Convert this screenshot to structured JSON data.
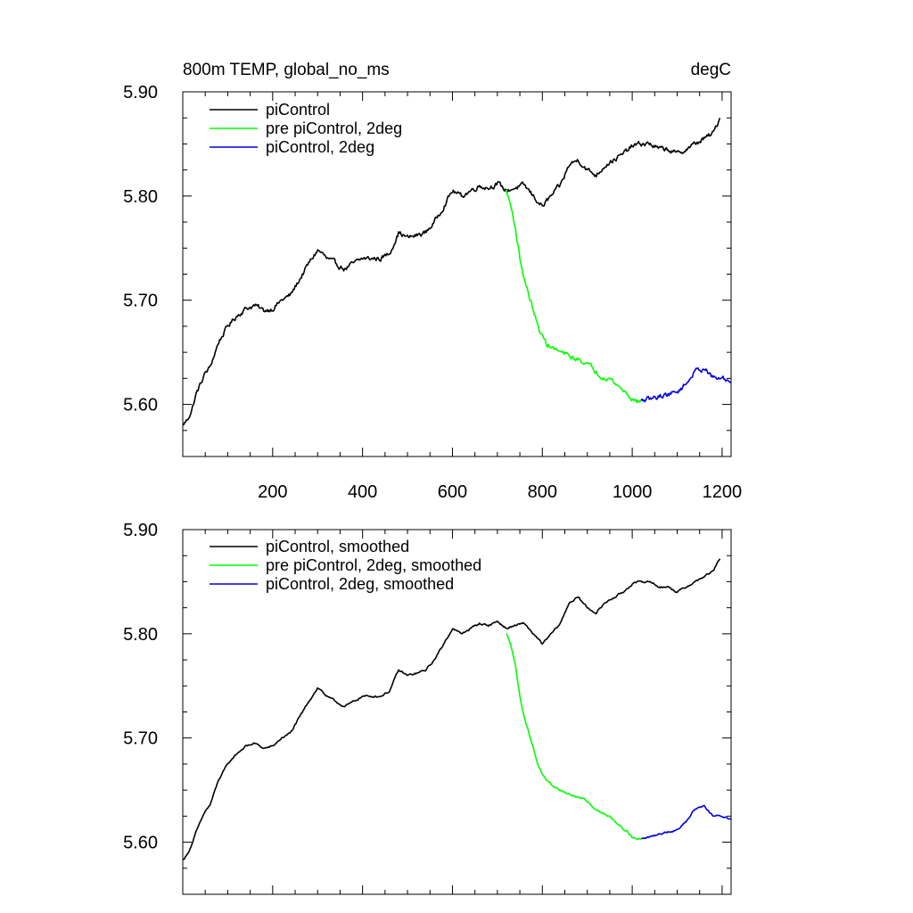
{
  "header": {
    "left": "800m TEMP, global_no_ms",
    "right": "degC"
  },
  "colors": {
    "piControl": "#000000",
    "pre_piControl": "#00ff00",
    "piControl_2deg": "#0000dd"
  },
  "chart_data": [
    {
      "type": "line",
      "title": "800m TEMP, global_no_ms",
      "units": "degC",
      "xlim": [
        0,
        1220
      ],
      "ylim": [
        5.55,
        5.9
      ],
      "xticks": [
        200,
        400,
        600,
        800,
        1000,
        1200
      ],
      "xticklabels": [
        "200",
        "400",
        "600",
        "800",
        "1000",
        "1200"
      ],
      "yticks": [
        5.6,
        5.7,
        5.8,
        5.9
      ],
      "yticklabels": [
        "5.60",
        "5.70",
        "5.80",
        "5.90"
      ],
      "legend": "top-left",
      "series": [
        {
          "name": "piControl",
          "color": "#000000",
          "noise": 0.004,
          "x": [
            0,
            10,
            20,
            30,
            40,
            50,
            60,
            80,
            100,
            120,
            140,
            160,
            180,
            200,
            220,
            240,
            260,
            280,
            300,
            310,
            320,
            340,
            360,
            380,
            400,
            420,
            440,
            460,
            480,
            500,
            520,
            540,
            560,
            580,
            600,
            620,
            640,
            660,
            680,
            700,
            720,
            740,
            760,
            780,
            800,
            820,
            840,
            860,
            880,
            900,
            920,
            940,
            960,
            980,
            1000,
            1020,
            1040,
            1060,
            1080,
            1100,
            1120,
            1140,
            1160,
            1180,
            1195
          ],
          "y": [
            5.58,
            5.585,
            5.595,
            5.61,
            5.62,
            5.63,
            5.635,
            5.66,
            5.675,
            5.685,
            5.692,
            5.695,
            5.69,
            5.692,
            5.7,
            5.705,
            5.72,
            5.735,
            5.748,
            5.745,
            5.74,
            5.735,
            5.73,
            5.735,
            5.74,
            5.74,
            5.74,
            5.745,
            5.765,
            5.76,
            5.762,
            5.765,
            5.775,
            5.79,
            5.805,
            5.8,
            5.805,
            5.81,
            5.808,
            5.812,
            5.805,
            5.808,
            5.81,
            5.8,
            5.79,
            5.8,
            5.81,
            5.83,
            5.835,
            5.825,
            5.82,
            5.83,
            5.835,
            5.84,
            5.848,
            5.85,
            5.85,
            5.845,
            5.845,
            5.84,
            5.845,
            5.85,
            5.855,
            5.86,
            5.875
          ]
        },
        {
          "name": "pre piControl, 2deg",
          "color": "#00ff00",
          "noise": 0.004,
          "x": [
            720,
            730,
            740,
            750,
            760,
            770,
            780,
            790,
            800,
            810,
            820,
            830,
            850,
            870,
            890,
            910,
            930,
            950,
            970,
            990,
            1000,
            1010,
            1020
          ],
          "y": [
            5.805,
            5.79,
            5.77,
            5.74,
            5.72,
            5.705,
            5.69,
            5.675,
            5.665,
            5.658,
            5.655,
            5.652,
            5.648,
            5.644,
            5.642,
            5.635,
            5.628,
            5.625,
            5.617,
            5.61,
            5.605,
            5.603,
            5.603
          ]
        },
        {
          "name": "piControl, 2deg",
          "color": "#0000dd",
          "noise": 0.004,
          "x": [
            1020,
            1040,
            1060,
            1080,
            1100,
            1120,
            1140,
            1160,
            1180,
            1200,
            1220
          ],
          "y": [
            5.603,
            5.605,
            5.608,
            5.61,
            5.612,
            5.62,
            5.632,
            5.635,
            5.625,
            5.625,
            5.622
          ]
        }
      ]
    },
    {
      "type": "line",
      "xlim": [
        0,
        1220
      ],
      "ylim": [
        5.55,
        5.9
      ],
      "xticks": [
        200,
        400,
        600,
        800,
        1000,
        1200
      ],
      "xticklabels": [],
      "yticks": [
        5.6,
        5.7,
        5.8,
        5.9
      ],
      "yticklabels": [
        "5.60",
        "5.70",
        "5.80",
        "5.90"
      ],
      "legend": "top-left",
      "series": [
        {
          "name": "piControl, smoothed",
          "color": "#000000",
          "noise": 0.0015,
          "x": [
            0,
            10,
            20,
            30,
            40,
            50,
            60,
            80,
            100,
            120,
            140,
            160,
            180,
            200,
            220,
            240,
            260,
            280,
            300,
            310,
            320,
            340,
            360,
            380,
            400,
            420,
            440,
            460,
            480,
            500,
            520,
            540,
            560,
            580,
            600,
            620,
            640,
            660,
            680,
            700,
            720,
            740,
            760,
            780,
            800,
            820,
            840,
            860,
            880,
            900,
            920,
            940,
            960,
            980,
            1000,
            1020,
            1040,
            1060,
            1080,
            1100,
            1120,
            1140,
            1160,
            1180,
            1195
          ],
          "y": [
            5.583,
            5.588,
            5.598,
            5.61,
            5.62,
            5.63,
            5.635,
            5.66,
            5.675,
            5.685,
            5.692,
            5.695,
            5.69,
            5.692,
            5.7,
            5.705,
            5.72,
            5.735,
            5.748,
            5.745,
            5.74,
            5.735,
            5.73,
            5.735,
            5.74,
            5.74,
            5.74,
            5.745,
            5.765,
            5.76,
            5.762,
            5.765,
            5.775,
            5.79,
            5.805,
            5.8,
            5.805,
            5.81,
            5.808,
            5.812,
            5.805,
            5.808,
            5.81,
            5.8,
            5.79,
            5.8,
            5.81,
            5.83,
            5.835,
            5.825,
            5.82,
            5.83,
            5.835,
            5.84,
            5.848,
            5.85,
            5.85,
            5.845,
            5.845,
            5.84,
            5.845,
            5.85,
            5.855,
            5.86,
            5.872
          ]
        },
        {
          "name": "pre piControl, 2deg, smoothed",
          "color": "#00ff00",
          "noise": 0.0015,
          "x": [
            720,
            730,
            740,
            750,
            760,
            770,
            780,
            790,
            800,
            810,
            820,
            830,
            850,
            870,
            890,
            910,
            930,
            950,
            970,
            990,
            1000,
            1010,
            1020
          ],
          "y": [
            5.8,
            5.79,
            5.77,
            5.74,
            5.72,
            5.705,
            5.69,
            5.675,
            5.665,
            5.658,
            5.655,
            5.652,
            5.648,
            5.644,
            5.642,
            5.635,
            5.628,
            5.625,
            5.617,
            5.61,
            5.605,
            5.603,
            5.603
          ]
        },
        {
          "name": "piControl, 2deg, smoothed",
          "color": "#0000dd",
          "noise": 0.0015,
          "x": [
            1020,
            1040,
            1060,
            1080,
            1100,
            1120,
            1140,
            1160,
            1180,
            1200,
            1220
          ],
          "y": [
            5.603,
            5.605,
            5.608,
            5.61,
            5.612,
            5.62,
            5.632,
            5.635,
            5.625,
            5.625,
            5.622
          ]
        }
      ]
    }
  ]
}
